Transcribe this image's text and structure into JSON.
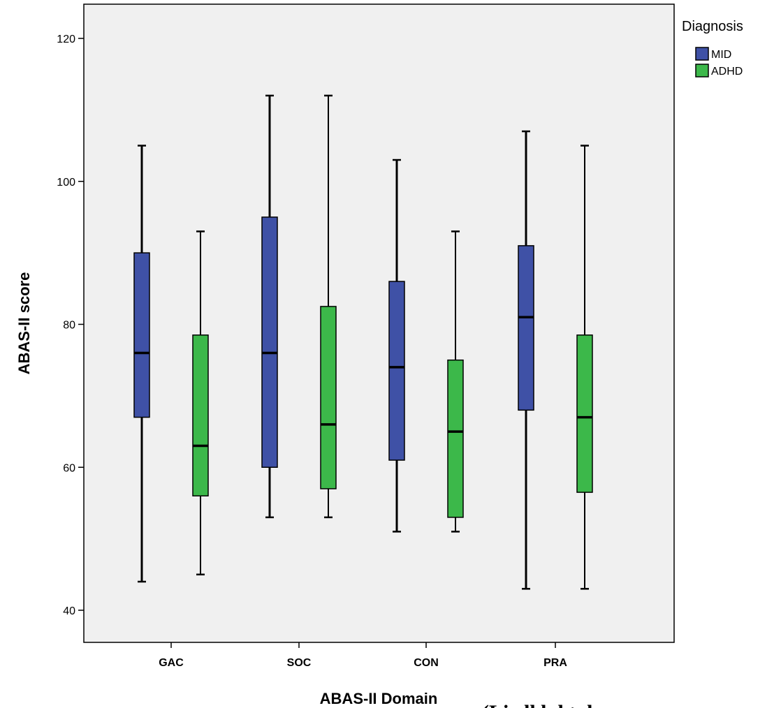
{
  "chart_data": {
    "type": "box",
    "xlabel": "ABAS-II Domain",
    "ylabel": "ABAS-II score",
    "ylim": [
      35,
      125
    ],
    "yticks": [
      40,
      60,
      80,
      100,
      120
    ],
    "categories": [
      "GAC",
      "SOC",
      "CON",
      "PRA"
    ],
    "legend_title": "Diagnosis",
    "legend_position": "top-right, outside plot",
    "grid": false,
    "series": [
      {
        "name": "MID",
        "color": "#3f51a6",
        "boxes": [
          {
            "min": 44,
            "q1": 67,
            "median": 76,
            "q3": 90,
            "max": 105
          },
          {
            "min": 53,
            "q1": 60,
            "median": 76,
            "q3": 95,
            "max": 112
          },
          {
            "min": 51,
            "q1": 61,
            "median": 74,
            "q3": 86,
            "max": 103
          },
          {
            "min": 43,
            "q1": 68,
            "median": 81,
            "q3": 91,
            "max": 107
          }
        ]
      },
      {
        "name": "ADHD",
        "color": "#3cb84a",
        "boxes": [
          {
            "min": 45,
            "q1": 56,
            "median": 63,
            "q3": 78.5,
            "max": 93
          },
          {
            "min": 53,
            "q1": 57,
            "median": 66,
            "q3": 82.5,
            "max": 112
          },
          {
            "min": 51,
            "q1": 53,
            "median": 65,
            "q3": 75,
            "max": 93
          },
          {
            "min": 43,
            "q1": 56.5,
            "median": 67,
            "q3": 78.5,
            "max": 105
          }
        ]
      }
    ],
    "background_color": "#f0f0f0"
  },
  "caption": "(Liedl l d t d c"
}
